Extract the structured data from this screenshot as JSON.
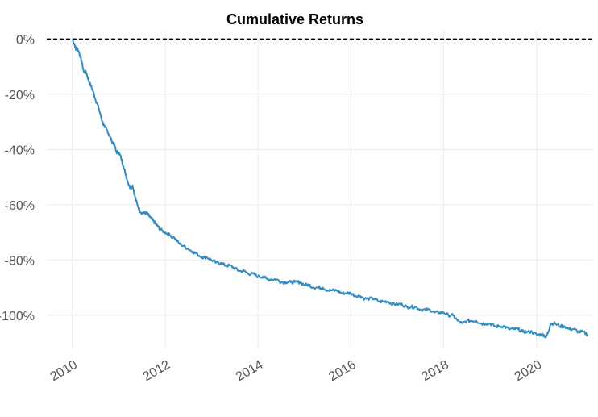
{
  "chart_data": {
    "type": "line",
    "title": "Cumulative Returns",
    "xlabel": "",
    "ylabel": "",
    "x_ticks": [
      "2010",
      "2012",
      "2014",
      "2016",
      "2018",
      "2020"
    ],
    "y_ticks": [
      "0%",
      "-20%",
      "-40%",
      "-60%",
      "-80%",
      "-100%"
    ],
    "y_tick_values": [
      0,
      -20,
      -40,
      -60,
      -80,
      -100
    ],
    "xlim": [
      2009.45,
      2021.2
    ],
    "ylim": [
      -112,
      3
    ],
    "reference_line": 0,
    "grid": true,
    "series_color": "#348dc1",
    "series": [
      {
        "x": [
          2010.0,
          2010.05,
          2010.08,
          2010.1,
          2010.15,
          2010.2,
          2010.25,
          2010.3,
          2010.35,
          2010.4,
          2010.45,
          2010.5,
          2010.55,
          2010.6,
          2010.65,
          2010.7,
          2010.75,
          2010.8,
          2010.85,
          2010.9,
          2010.95,
          2011.0,
          2011.05,
          2011.1,
          2011.15,
          2011.2,
          2011.25,
          2011.3,
          2011.35,
          2011.4,
          2011.45,
          2011.5,
          2011.55,
          2011.6,
          2011.65,
          2011.7,
          2011.75,
          2011.8,
          2011.85,
          2011.9,
          2012.0,
          2012.1,
          2012.2,
          2012.3,
          2012.4,
          2012.5,
          2012.6,
          2012.7,
          2012.8,
          2012.9,
          2013.0,
          2013.1,
          2013.2,
          2013.3,
          2013.4,
          2013.5,
          2013.6,
          2013.7,
          2013.8,
          2013.9,
          2014.0,
          2014.1,
          2014.2,
          2014.3,
          2014.4,
          2014.5,
          2014.6,
          2014.7,
          2014.8,
          2014.9,
          2015.0,
          2015.1,
          2015.2,
          2015.3,
          2015.4,
          2015.5,
          2015.6,
          2015.7,
          2015.8,
          2015.9,
          2016.0,
          2016.1,
          2016.2,
          2016.3,
          2016.4,
          2016.5,
          2016.6,
          2016.7,
          2016.8,
          2016.9,
          2017.0,
          2017.1,
          2017.2,
          2017.3,
          2017.4,
          2017.5,
          2017.6,
          2017.7,
          2017.8,
          2017.9,
          2018.0,
          2018.1,
          2018.2,
          2018.3,
          2018.4,
          2018.5,
          2018.6,
          2018.7,
          2018.8,
          2018.9,
          2019.0,
          2019.1,
          2019.2,
          2019.3,
          2019.4,
          2019.5,
          2019.6,
          2019.7,
          2019.8,
          2019.9,
          2020.0,
          2020.1,
          2020.15,
          2020.2,
          2020.25,
          2020.3,
          2020.4,
          2020.5,
          2020.6,
          2020.7,
          2020.8,
          2020.9,
          2021.0,
          2021.1
        ],
        "values": [
          0,
          -2,
          -4,
          -3,
          -5,
          -8,
          -12,
          -12,
          -15,
          -17,
          -19,
          -22,
          -24,
          -27,
          -30,
          -32,
          -33,
          -35,
          -37,
          -38,
          -41,
          -41,
          -43,
          -46,
          -49,
          -52,
          -54,
          -53,
          -57,
          -60,
          -62,
          -63,
          -63,
          -63,
          -64,
          -65,
          -66,
          -67,
          -68,
          -69,
          -70,
          -71,
          -72,
          -74,
          -75,
          -76,
          -77,
          -78,
          -79,
          -79,
          -80,
          -81,
          -81,
          -82,
          -82,
          -83,
          -84,
          -84,
          -85,
          -85,
          -86,
          -86,
          -87,
          -87,
          -87,
          -88,
          -88,
          -88,
          -88,
          -88,
          -89,
          -89,
          -90,
          -90,
          -90,
          -91,
          -91,
          -91,
          -92,
          -92,
          -92,
          -93,
          -93,
          -94,
          -94,
          -94,
          -95,
          -95,
          -95,
          -96,
          -96,
          -96,
          -97,
          -97,
          -97,
          -98,
          -98,
          -98,
          -99,
          -99,
          -99,
          -100,
          -100,
          -102,
          -103,
          -102,
          -102,
          -102,
          -103,
          -103,
          -103,
          -104,
          -104,
          -104,
          -105,
          -105,
          -105,
          -106,
          -106,
          -106,
          -107,
          -107,
          -107,
          -108,
          -106,
          -103,
          -103,
          -104,
          -104,
          -105,
          -105,
          -106,
          -106,
          -107
        ]
      }
    ]
  }
}
